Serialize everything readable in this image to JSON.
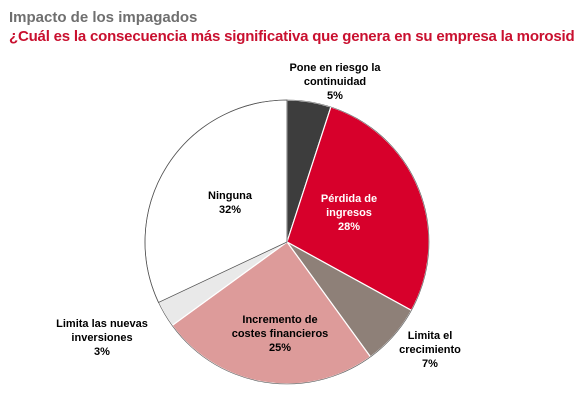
{
  "header": {
    "kicker": "Impacto de los impagados",
    "question": "¿Cuál es la consecuencia más significativa que genera en su empresa la morosidad?"
  },
  "chart_data": {
    "type": "pie",
    "title": "Impacto de los impagados",
    "subtitle": "¿Cuál es la consecuencia más significativa que genera en su empresa la morosidad?",
    "start": "12 o'clock, clockwise",
    "slices": [
      {
        "lines": [
          "Pone en riesgo la",
          "continuidad"
        ],
        "value": 5,
        "pct_label": "5%",
        "color": "#3d3d3d",
        "label_color": "#000000",
        "inside": false
      },
      {
        "lines": [
          "Pérdida de",
          "ingresos"
        ],
        "value": 28,
        "pct_label": "28%",
        "color": "#d7002b",
        "label_color": "#ffffff",
        "inside": true
      },
      {
        "lines": [
          "Limita el",
          "crecimiento"
        ],
        "value": 7,
        "pct_label": "7%",
        "color": "#8e8078",
        "label_color": "#000000",
        "inside": false
      },
      {
        "lines": [
          "Incremento de",
          "costes financieros"
        ],
        "value": 25,
        "pct_label": "25%",
        "color": "#dd9b9a",
        "label_color": "#000000",
        "inside": true
      },
      {
        "lines": [
          "Limita las nuevas",
          "inversiones"
        ],
        "value": 3,
        "pct_label": "3%",
        "color": "#e9e9e9",
        "label_color": "#000000",
        "inside": false
      },
      {
        "lines": [
          "Ninguna"
        ],
        "value": 32,
        "pct_label": "32%",
        "color": "#ffffff",
        "label_color": "#000000",
        "inside": true
      }
    ]
  }
}
